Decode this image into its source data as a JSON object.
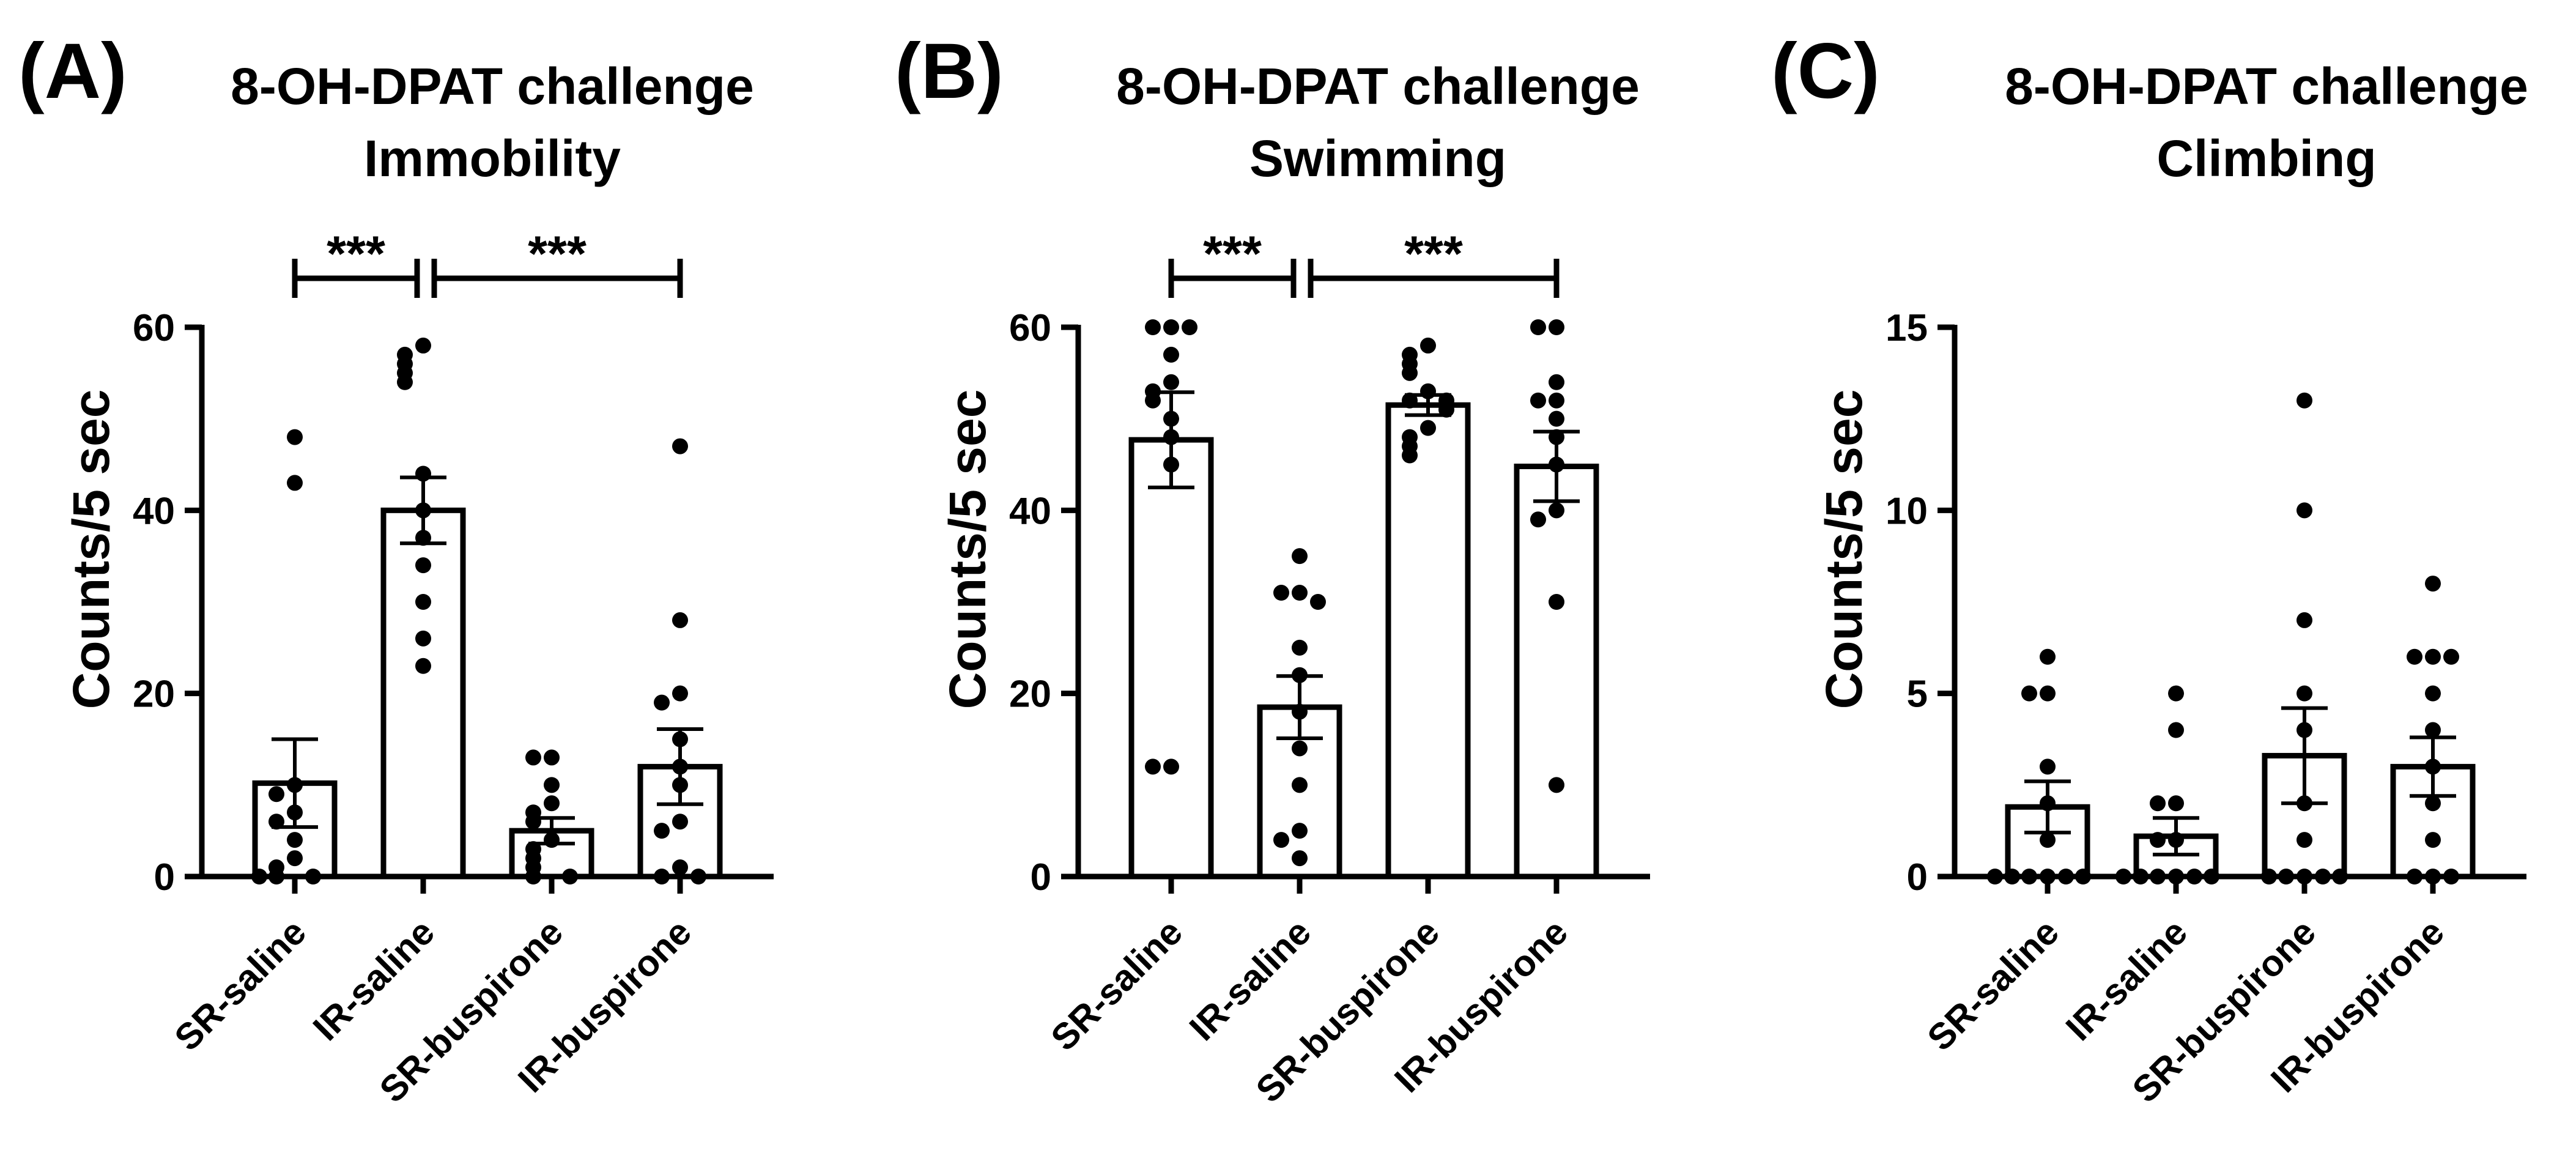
{
  "chart_data": [
    {
      "type": "bar",
      "panel_label": "(A)",
      "title": "8-OH-DPAT challenge",
      "subtitle": "Immobility",
      "xlabel": "",
      "ylabel": "Counts/5 sec",
      "ylim": [
        0,
        60
      ],
      "yticks": [
        0,
        20,
        40,
        60
      ],
      "grid": false,
      "categories": [
        "SR-saline",
        "IR-saline",
        "SR-buspirone",
        "IR-buspirone"
      ],
      "values": [
        10.2,
        40.0,
        5.0,
        12.0
      ],
      "sem": [
        4.8,
        3.6,
        1.4,
        4.1
      ],
      "points": [
        [
          48,
          43,
          10,
          9,
          7,
          6,
          4,
          2,
          1,
          0,
          0,
          0
        ],
        [
          58,
          57,
          56,
          55,
          54,
          44,
          40,
          37,
          34,
          30,
          26,
          23
        ],
        [
          13,
          13,
          10,
          8,
          7,
          6,
          4,
          3,
          2,
          1,
          0,
          0
        ],
        [
          47,
          28,
          20,
          19,
          15,
          12,
          10,
          6,
          5,
          1,
          0,
          0
        ]
      ],
      "significance": [
        {
          "groups": [
            0,
            1
          ],
          "label": "***"
        },
        {
          "groups": [
            1,
            3
          ],
          "label": "***"
        }
      ]
    },
    {
      "type": "bar",
      "panel_label": "(B)",
      "title": "8-OH-DPAT challenge",
      "subtitle": "Swimming",
      "xlabel": "",
      "ylabel": "Counts/5 sec",
      "ylim": [
        0,
        60
      ],
      "yticks": [
        0,
        20,
        40,
        60
      ],
      "grid": false,
      "categories": [
        "SR-saline",
        "IR-saline",
        "SR-buspirone",
        "IR-buspirone"
      ],
      "values": [
        47.7,
        18.5,
        51.5,
        44.8
      ],
      "sem": [
        5.2,
        3.4,
        1.1,
        3.8
      ],
      "points": [
        [
          60,
          60,
          60,
          57,
          54,
          53,
          52,
          50,
          48,
          45,
          12,
          12
        ],
        [
          35,
          31,
          31,
          30,
          25,
          22,
          18,
          14,
          10,
          5,
          4,
          2
        ],
        [
          58,
          57,
          56,
          55,
          53,
          52,
          52,
          51,
          49,
          48,
          47,
          46
        ],
        [
          60,
          60,
          54,
          52,
          52,
          50,
          48,
          45,
          40,
          39,
          30,
          10
        ]
      ],
      "significance": [
        {
          "groups": [
            0,
            1
          ],
          "label": "***"
        },
        {
          "groups": [
            1,
            3
          ],
          "label": "***"
        }
      ]
    },
    {
      "type": "bar",
      "panel_label": "(C)",
      "title": "8-OH-DPAT challenge",
      "subtitle": "Climbing",
      "xlabel": "",
      "ylabel": "Counts/5 sec",
      "ylim": [
        0,
        15
      ],
      "yticks": [
        0,
        5,
        10,
        15
      ],
      "grid": false,
      "categories": [
        "SR-saline",
        "IR-saline",
        "SR-buspirone",
        "IR-buspirone"
      ],
      "values": [
        1.9,
        1.1,
        3.3,
        3.0
      ],
      "sem": [
        0.7,
        0.5,
        1.3,
        0.8
      ],
      "points": [
        [
          6,
          5,
          5,
          3,
          2,
          1,
          0,
          0,
          0,
          0,
          0,
          0
        ],
        [
          5,
          4,
          2,
          2,
          1,
          1,
          0,
          0,
          0,
          0,
          0,
          0
        ],
        [
          13,
          10,
          7,
          5,
          4,
          2,
          1,
          0,
          0,
          0,
          0,
          0
        ],
        [
          8,
          6,
          6,
          6,
          5,
          4,
          3,
          2,
          1,
          0,
          0,
          0
        ]
      ],
      "significance": []
    }
  ]
}
